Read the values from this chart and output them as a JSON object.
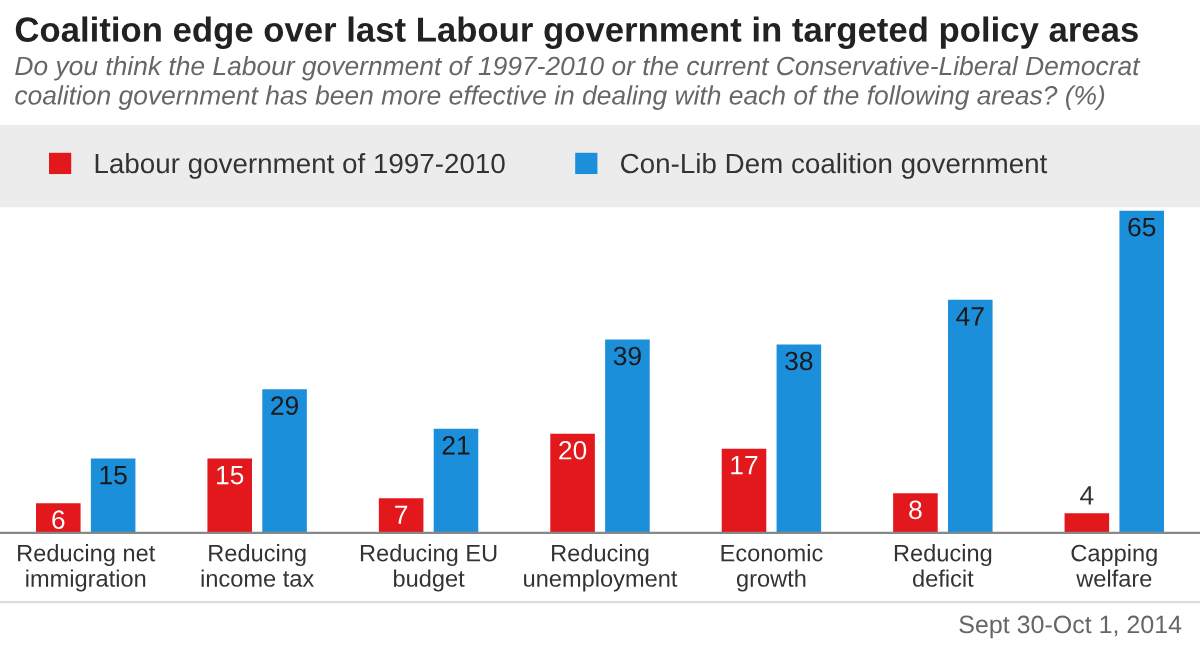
{
  "chart_data": {
    "type": "bar",
    "title": "Coalition edge over last Labour government in targeted policy areas",
    "subtitle": "Do you think the Labour government of 1997-2010 or the current Conservative-Liberal Democrat coalition government has been more effective in dealing with each of the following areas? (%)",
    "categories": [
      "Reducing net\nimmigration",
      "Reducing\nincome tax",
      "Reducing EU\nbudget",
      "Reducing\nunemployment",
      "Economic\ngrowth",
      "Reducing\ndeficit",
      "Capping\nwelfare"
    ],
    "series": [
      {
        "name": "Labour government of 1997-2010",
        "color": "#e2181d",
        "values": [
          6,
          15,
          7,
          20,
          17,
          8,
          4
        ]
      },
      {
        "name": "Con-Lib Dem coalition government",
        "color": "#1c8fdb",
        "values": [
          15,
          29,
          21,
          39,
          38,
          47,
          65
        ]
      }
    ],
    "data_labels": true,
    "legend": "top",
    "grid": false,
    "annotations": [
      "Sept 30-Oct 1, 2014"
    ]
  }
}
